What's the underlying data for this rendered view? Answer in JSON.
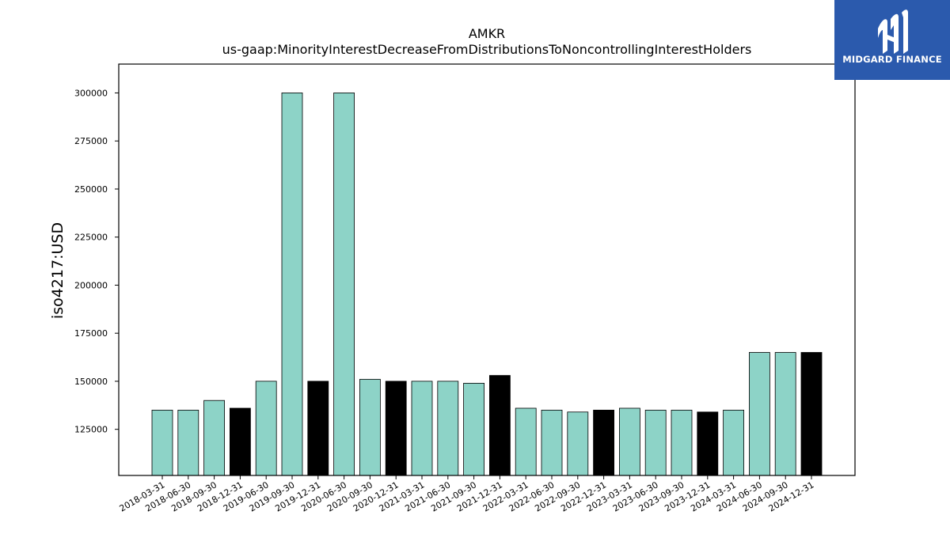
{
  "chart_data": {
    "type": "bar",
    "title": "AMKR",
    "subtitle": "us-gaap:MinorityInterestDecreaseFromDistributionsToNoncontrollingInterestHolders",
    "xlabel": "",
    "ylabel": "iso4217:USD",
    "ylim": [
      101000,
      315000
    ],
    "yticks": [
      125000,
      150000,
      175000,
      200000,
      225000,
      250000,
      275000,
      300000
    ],
    "grid": false,
    "categories": [
      "2018-03-31",
      "2018-06-30",
      "2018-09-30",
      "2018-12-31",
      "2019-06-30",
      "2019-09-30",
      "2019-12-31",
      "2020-06-30",
      "2020-09-30",
      "2020-12-31",
      "2021-03-31",
      "2021-06-30",
      "2021-09-30",
      "2021-12-31",
      "2022-03-31",
      "2022-06-30",
      "2022-09-30",
      "2022-12-31",
      "2023-03-31",
      "2023-06-30",
      "2023-09-30",
      "2023-12-31",
      "2024-03-31",
      "2024-06-30",
      "2024-09-30",
      "2024-12-31"
    ],
    "values": [
      135000,
      135000,
      140000,
      136000,
      150000,
      300000,
      150000,
      300000,
      151000,
      150000,
      150000,
      150000,
      149000,
      153000,
      136000,
      135000,
      134000,
      135000,
      136000,
      135000,
      135000,
      134000,
      135000,
      165000,
      165000,
      165000
    ],
    "year_end": [
      false,
      false,
      false,
      true,
      false,
      false,
      true,
      false,
      false,
      true,
      false,
      false,
      false,
      true,
      false,
      false,
      false,
      true,
      false,
      false,
      false,
      true,
      false,
      false,
      false,
      true
    ],
    "colors": {
      "quarter": "#8dd3c7",
      "year_end": "#000000"
    }
  },
  "logo": {
    "text": "MIDGARD FINANCE",
    "icon": "midgard-logo-icon",
    "color": "#2b5aad"
  }
}
